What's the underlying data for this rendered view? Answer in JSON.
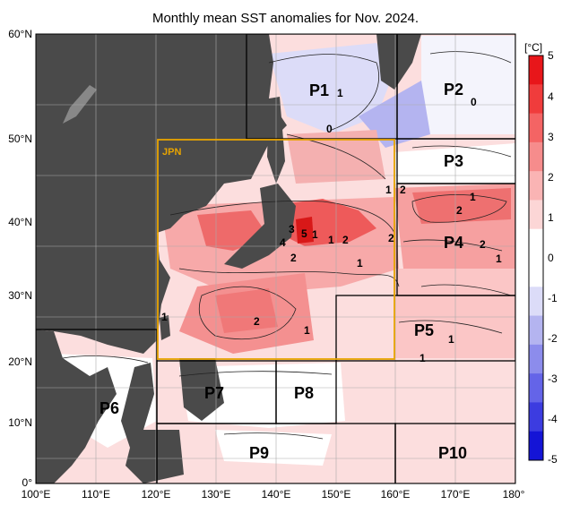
{
  "title": "Monthly mean SST anomalies for Nov. 2024.",
  "colorbar": {
    "unit": "[°C]",
    "ticks": [
      "5",
      "4",
      "3",
      "2",
      "1",
      "0",
      "-1",
      "-2",
      "-3",
      "-4",
      "-5"
    ],
    "colors": [
      "#e8161a",
      "#f03c3c",
      "#f46464",
      "#f68c8c",
      "#fab4b4",
      "#fcd6d6",
      "#ffffff",
      "#ffffff",
      "#dcdcf8",
      "#b4b4f0",
      "#8c8cec",
      "#6464e8",
      "#3c3ce0",
      "#1414d6"
    ]
  },
  "axes": {
    "lat_labels": [
      "60°N",
      "50°N",
      "40°N",
      "30°N",
      "20°N",
      "10°N",
      "0°"
    ],
    "lon_labels": [
      "100°E",
      "110°E",
      "120°E",
      "130°E",
      "140°E",
      "150°E",
      "160°E",
      "170°E",
      "180°"
    ]
  },
  "regions": [
    "P1",
    "P2",
    "P3",
    "P4",
    "P5",
    "P6",
    "P7",
    "P8",
    "P9",
    "P10"
  ],
  "jpn_label": "JPN",
  "contour_labels": [
    "1",
    "0",
    "0",
    "1",
    "2",
    "1",
    "2",
    "3",
    "1",
    "5",
    "4",
    "1",
    "2",
    "2",
    "1",
    "2",
    "2",
    "1",
    "2",
    "1",
    "1",
    "1",
    "1"
  ],
  "colors": {
    "land": "#4a4a4a",
    "jpn_box": "#e8a400",
    "grid": "#aaaaaa"
  }
}
